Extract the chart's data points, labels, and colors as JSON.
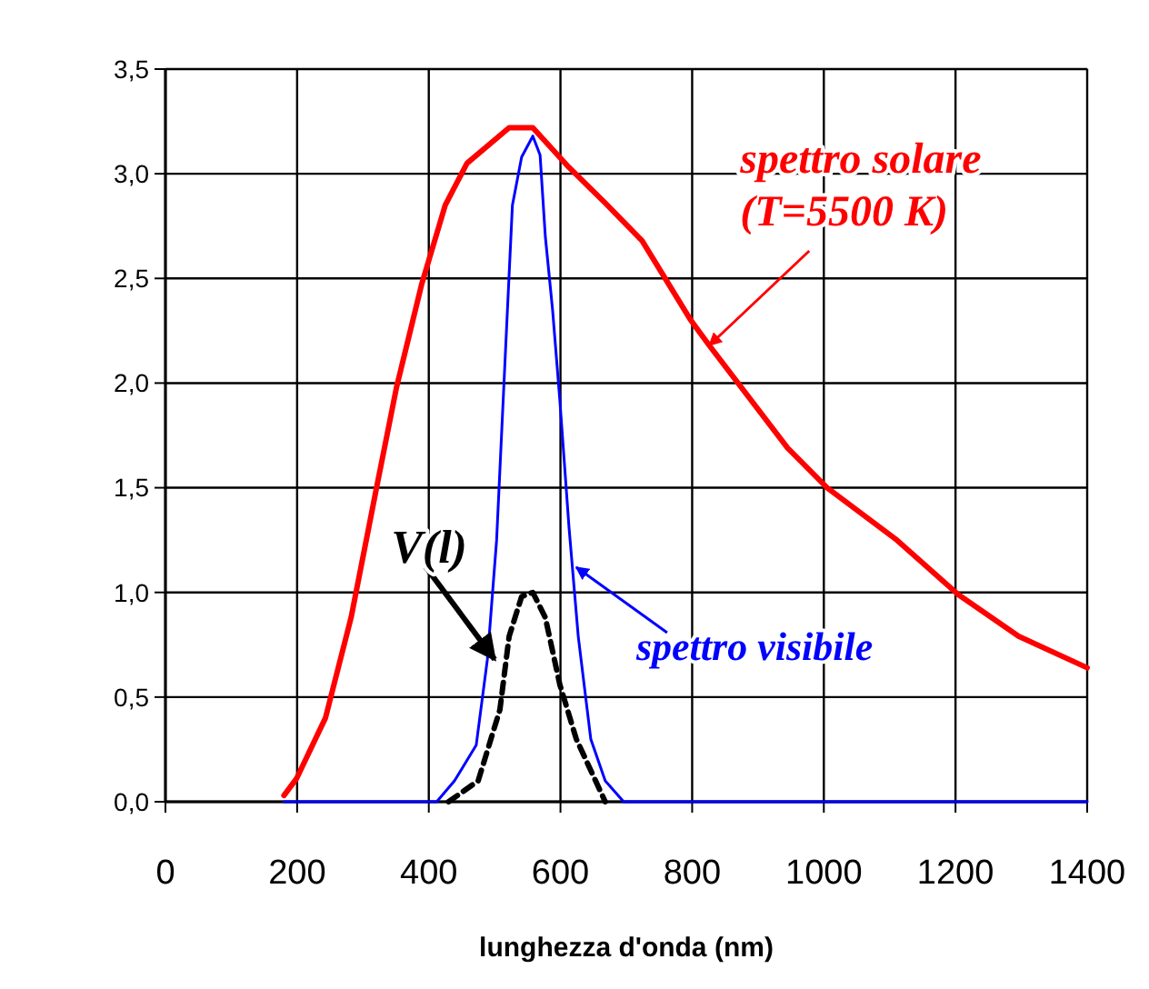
{
  "chart_data": {
    "type": "line",
    "xlabel": "lunghezza d'onda (nm)",
    "xlim": [
      0,
      1400
    ],
    "xticks": [
      0,
      200,
      400,
      600,
      800,
      1000,
      1200,
      1400
    ],
    "ylim": [
      0,
      3.5
    ],
    "yticks": [
      {
        "value": 0,
        "label": "0,0"
      },
      {
        "value": 0.5,
        "label": "0,5"
      },
      {
        "value": 1,
        "label": "1,0"
      },
      {
        "value": 1.5,
        "label": "1,5"
      },
      {
        "value": 2,
        "label": "2,0"
      },
      {
        "value": 2.5,
        "label": "2,5"
      },
      {
        "value": 3,
        "label": "3,0"
      },
      {
        "value": 3.5,
        "label": "3,5"
      }
    ],
    "grid": true,
    "marker": "none",
    "series": [
      {
        "color": "#ff0000",
        "line_style": "solid",
        "x": [
          180,
          199,
          243,
          282,
          320,
          351,
          389,
          425,
          458,
          522,
          558,
          613,
          668,
          724,
          798,
          826,
          945,
          1005,
          1111,
          1204,
          1296,
          1400
        ],
        "values": [
          0.03,
          0.11,
          0.4,
          0.88,
          1.49,
          1.98,
          2.47,
          2.85,
          3.05,
          3.22,
          3.22,
          3.03,
          2.86,
          2.68,
          2.3,
          2.18,
          1.69,
          1.5,
          1.25,
          0.99,
          0.79,
          0.64
        ]
      },
      {
        "color": "#0000ff",
        "line_style": "solid",
        "x": [
          180,
          412,
          439,
          472,
          489,
          503,
          516,
          527,
          541,
          558,
          569,
          577,
          588,
          599,
          613,
          627,
          646,
          668,
          696,
          1400
        ],
        "values": [
          0,
          0,
          0.1,
          0.27,
          0.68,
          1.25,
          2.12,
          2.85,
          3.08,
          3.18,
          3.09,
          2.7,
          2.35,
          1.92,
          1.31,
          0.79,
          0.3,
          0.1,
          0,
          0
        ]
      },
      {
        "color": "#000000",
        "line_style": "dashed",
        "x": [
          430,
          475,
          508,
          522,
          541,
          558,
          577,
          599,
          624,
          668
        ],
        "values": [
          0,
          0.1,
          0.44,
          0.79,
          0.98,
          1.0,
          0.88,
          0.56,
          0.3,
          0
        ]
      }
    ],
    "annotations": [
      {
        "text": "spettro solare\n(T=5500 K)",
        "x": 826,
        "y": 2.18
      },
      {
        "text": "spettro visibile",
        "x": 624,
        "y": 1.12
      },
      {
        "text": "V(l)",
        "x": 500,
        "y": 0.68
      }
    ]
  }
}
